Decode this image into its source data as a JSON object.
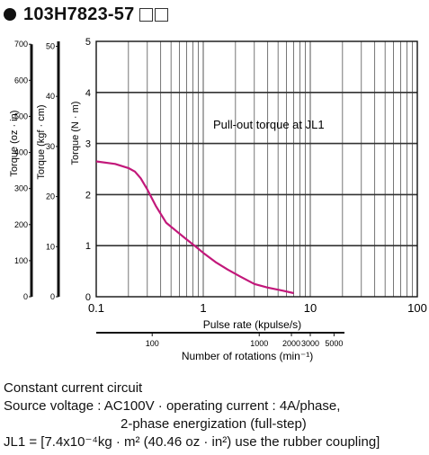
{
  "header": {
    "title": "103H7823-57",
    "bullet_icon": "filled-circle-icon",
    "placeholder_box_icon": "empty-square-icon",
    "placeholder_box_count": 2
  },
  "chart_data": {
    "type": "line",
    "title": "",
    "annotation": "Pull-out torque at JL1",
    "xlabel": "Pulse rate (kpulse/s)",
    "xscale": "log",
    "xlim": [
      0.1,
      100
    ],
    "xticks": [
      {
        "v": 0.1,
        "label": "0.1"
      },
      {
        "v": 1,
        "label": "1"
      },
      {
        "v": 10,
        "label": "10"
      },
      {
        "v": 100,
        "label": "100"
      }
    ],
    "x2label": "Number of rotations (min⁻¹)",
    "x2ticks": [
      {
        "rpm": 100,
        "label": "100"
      },
      {
        "rpm": 1000,
        "label": "1000"
      },
      {
        "rpm": 2000,
        "label": "2000"
      },
      {
        "rpm": 3000,
        "label": "3000"
      },
      {
        "rpm": 5000,
        "label": "5000"
      }
    ],
    "rpm_per_kpps": 300,
    "ylabel": "Torque (N · m)",
    "ylim": [
      0,
      5
    ],
    "yticks": [
      0,
      1,
      2,
      3,
      4,
      5
    ],
    "y_alt_axes": [
      {
        "label": "Torque (kgf · cm)",
        "max": 50,
        "ticks": [
          0,
          10,
          20,
          30,
          40,
          50
        ]
      },
      {
        "label": "Torque (oz · in)",
        "max": 700,
        "ticks": [
          0,
          100,
          200,
          300,
          400,
          500,
          600,
          700
        ]
      }
    ],
    "grid": true,
    "series": [
      {
        "color": "#c2187a",
        "x": [
          0.1,
          0.15,
          0.2,
          0.23,
          0.26,
          0.3,
          0.36,
          0.45,
          0.55,
          0.7,
          0.85,
          1.0,
          1.3,
          1.7,
          2.2,
          3.0,
          4.0,
          5.5,
          7.0
        ],
        "y": [
          2.65,
          2.6,
          2.52,
          2.45,
          2.32,
          2.1,
          1.78,
          1.45,
          1.3,
          1.12,
          0.98,
          0.86,
          0.68,
          0.53,
          0.4,
          0.25,
          0.18,
          0.12,
          0.07
        ]
      }
    ]
  },
  "notes": {
    "line1": "Constant current circuit",
    "line2": "Source voltage : AC100V · operating current : 4A/phase,",
    "line3": "2-phase energization (full-step)",
    "line4": "JL1 = [7.4x10⁻⁴kg · m² (40.46 oz · in²)  use the rubber coupling]"
  }
}
